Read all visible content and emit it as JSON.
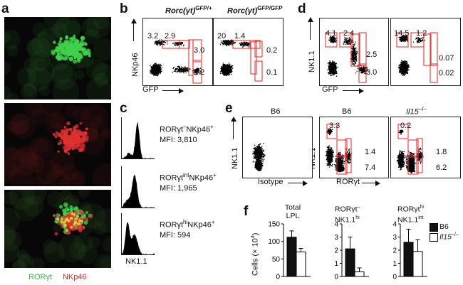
{
  "panels": {
    "a": {
      "letter": "a",
      "legend_green": "RORγt",
      "legend_red": "NKp46",
      "colors": {
        "green": "#3fd24a",
        "red": "#e03030"
      }
    },
    "b": {
      "letter": "b",
      "col1_title": "Rorc(γt)",
      "col1_sup": "GFP/+",
      "col2_title": "Rorc(γt)",
      "col2_sup": "GFP/GFP",
      "ylabel": "NKp46",
      "xlabel": "GFP",
      "p1": {
        "tl1": "3.2",
        "tl2": "2.9",
        "r_top": "3.0",
        "r_bot": "2.2"
      },
      "p2": {
        "tl1": "20",
        "tl2": "1.4",
        "r_top": "0.2",
        "r_bot": "0.1"
      }
    },
    "c": {
      "letter": "c",
      "xlabel": "NK1.1",
      "rows": [
        {
          "pre": "RORγt",
          "sup": "–",
          "post": "NKp46",
          "sup2": "+",
          "mfi": "MFI: 3,810"
        },
        {
          "pre": "RORγt",
          "sup": "int",
          "post": "NKp46",
          "sup2": "+",
          "mfi": "MFI: 1,965"
        },
        {
          "pre": "RORγt",
          "sup": "hi",
          "post": "NKp46",
          "sup2": "+",
          "mfi": "MFI: 594"
        }
      ]
    },
    "d": {
      "letter": "d",
      "ylabel": "NK1.1",
      "xlabel": "GFP",
      "p1": {
        "tl1": "4.1",
        "tl2": "2.4",
        "r_top": "2.5",
        "r_bot": "3.0"
      },
      "p2": {
        "tl1": "14.5",
        "tl2": "1.2",
        "r_top": "0.07",
        "r_bot": "0.02"
      }
    },
    "e": {
      "letter": "e",
      "titles": [
        "B6",
        "B6",
        "Il15"
      ],
      "title3_sup": "–/–",
      "ylabel1": "NK1.1",
      "ylabel2": "NK1.1",
      "xlabel1": "Isotype",
      "xlabel2": "RORγt",
      "p2": {
        "top": "3.3",
        "mid": "1.4",
        "bot": "7.4"
      },
      "p3": {
        "top": "0.2",
        "mid": "1.8",
        "bot": "6.2"
      }
    },
    "f": {
      "letter": "f",
      "ylabel": "Cells (× 10",
      "ylabel_sup": "4",
      "ylabel_end": ")",
      "legend": {
        "b6": "B6",
        "il15": "Il15",
        "il15_sup": "–/–"
      },
      "titles": [
        {
          "l1": "Total",
          "l2": "LPL"
        },
        {
          "l1": "RORγt",
          "l1sup": "–",
          "l2": "NK1.1",
          "l2sup": "hi"
        },
        {
          "l1": "RORγt",
          "l1sup": "hi",
          "l2": "NK1.1",
          "l2sup": "int"
        }
      ]
    }
  },
  "chart_data": [
    {
      "type": "bar",
      "title": "Total LPL",
      "categories": [
        "B6",
        "Il15–/–"
      ],
      "series": [
        {
          "name": "Cells",
          "values": [
            112,
            70
          ],
          "errors": [
            18,
            10
          ]
        }
      ],
      "ylabel": "Cells (× 10^4)",
      "ylim": [
        0,
        150
      ],
      "yticks": [
        "0",
        "50",
        "100",
        "150"
      ]
    },
    {
      "type": "bar",
      "title": "RORγt– NK1.1hi",
      "categories": [
        "B6",
        "Il15–/–"
      ],
      "series": [
        {
          "name": "Cells",
          "values": [
            2.1,
            0.35
          ],
          "errors": [
            0.9,
            0.3
          ]
        }
      ],
      "ylim": [
        0,
        4
      ],
      "yticks": [
        "0",
        "1",
        "2",
        "3",
        "4"
      ]
    },
    {
      "type": "bar",
      "title": "RORγthi NK1.1int",
      "categories": [
        "B6",
        "Il15–/–"
      ],
      "series": [
        {
          "name": "Cells",
          "values": [
            2.6,
            1.9
          ],
          "errors": [
            1.0,
            0.9
          ]
        }
      ],
      "ylim": [
        0,
        4
      ],
      "yticks": [
        "0",
        "1",
        "2",
        "3",
        "4"
      ]
    }
  ]
}
